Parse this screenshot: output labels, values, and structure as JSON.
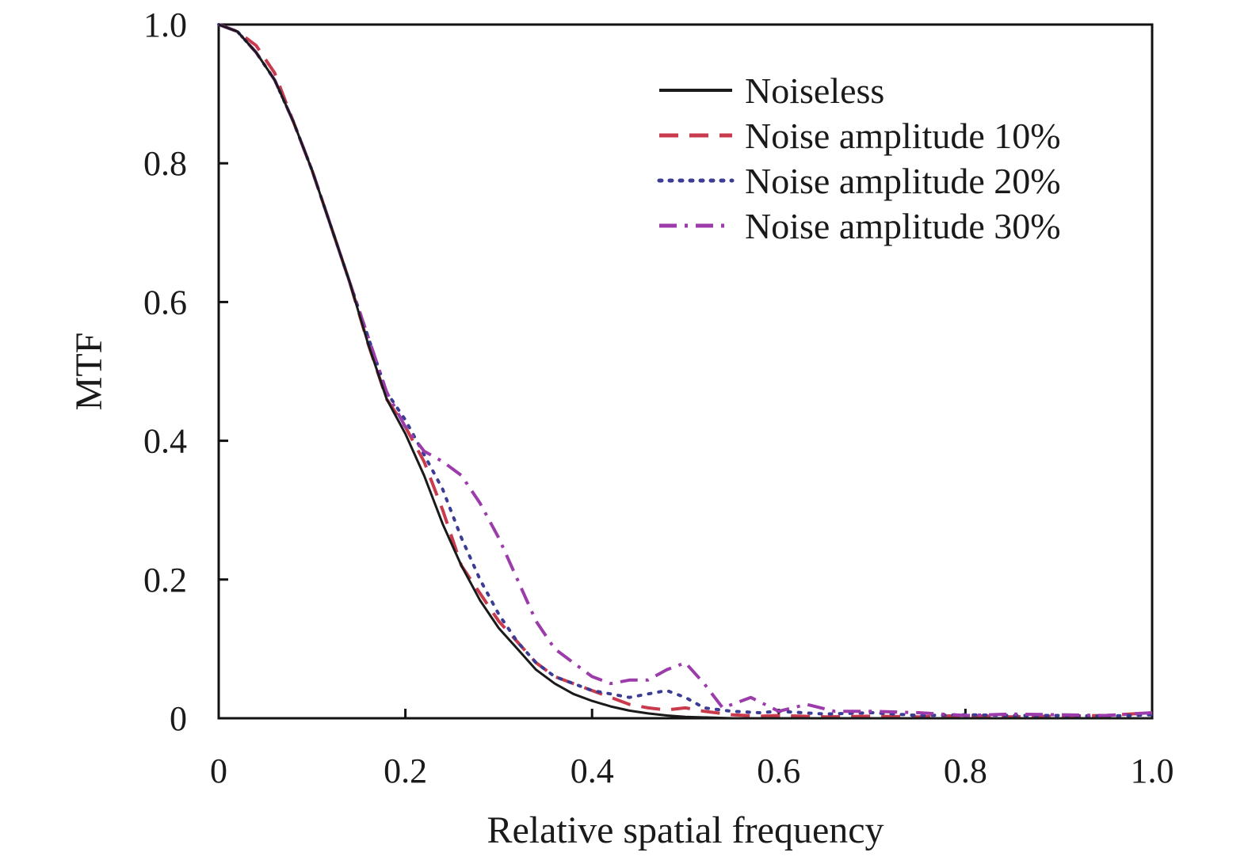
{
  "chart_data": {
    "type": "line",
    "title": "",
    "xlabel": "Relative spatial frequency",
    "ylabel": "MTF",
    "xlim": [
      0,
      1.0
    ],
    "ylim": [
      0,
      1.0
    ],
    "x_ticks": [
      "0",
      "0.2",
      "0.4",
      "0.6",
      "0.8",
      "1.0"
    ],
    "y_ticks": [
      "0",
      "0.2",
      "0.4",
      "0.6",
      "0.8",
      "1.0"
    ],
    "grid": false,
    "legend_position": "top-right",
    "series": [
      {
        "name": "Noiseless",
        "color": "#1a1a1a",
        "dash": "solid",
        "x": [
          0,
          0.02,
          0.04,
          0.06,
          0.08,
          0.1,
          0.12,
          0.14,
          0.16,
          0.18,
          0.2,
          0.22,
          0.24,
          0.26,
          0.28,
          0.3,
          0.32,
          0.34,
          0.36,
          0.38,
          0.4,
          0.42,
          0.44,
          0.46,
          0.48,
          0.5,
          0.55,
          0.6,
          0.7,
          0.8,
          0.9,
          1.0
        ],
        "y": [
          1.0,
          0.99,
          0.96,
          0.92,
          0.86,
          0.79,
          0.71,
          0.63,
          0.54,
          0.46,
          0.41,
          0.35,
          0.28,
          0.22,
          0.17,
          0.13,
          0.1,
          0.07,
          0.05,
          0.035,
          0.025,
          0.017,
          0.011,
          0.007,
          0.004,
          0.002,
          0.0,
          0.0,
          0.0,
          0.0,
          0.0,
          0.0
        ]
      },
      {
        "name": "Noise amplitude 10%",
        "color": "#c83a4c",
        "dash": "dashed",
        "x": [
          0,
          0.02,
          0.04,
          0.06,
          0.08,
          0.1,
          0.12,
          0.14,
          0.16,
          0.18,
          0.2,
          0.22,
          0.24,
          0.26,
          0.28,
          0.3,
          0.32,
          0.34,
          0.36,
          0.38,
          0.4,
          0.42,
          0.44,
          0.46,
          0.48,
          0.5,
          0.52,
          0.55,
          0.58,
          0.6,
          0.65,
          0.7,
          0.75,
          0.8,
          0.85,
          0.9,
          0.95,
          1.0
        ],
        "y": [
          1.0,
          0.99,
          0.97,
          0.93,
          0.86,
          0.79,
          0.71,
          0.63,
          0.54,
          0.46,
          0.42,
          0.37,
          0.3,
          0.22,
          0.18,
          0.14,
          0.11,
          0.08,
          0.06,
          0.05,
          0.04,
          0.03,
          0.02,
          0.015,
          0.012,
          0.015,
          0.01,
          0.005,
          0.003,
          0.004,
          0.002,
          0.003,
          0.002,
          0.004,
          0.002,
          0.003,
          0.004,
          0.008
        ]
      },
      {
        "name": "Noise amplitude 20%",
        "color": "#3c3c94",
        "dash": "dotted",
        "x": [
          0,
          0.02,
          0.04,
          0.06,
          0.08,
          0.1,
          0.12,
          0.14,
          0.16,
          0.18,
          0.2,
          0.22,
          0.24,
          0.26,
          0.28,
          0.3,
          0.32,
          0.34,
          0.36,
          0.38,
          0.4,
          0.42,
          0.44,
          0.46,
          0.48,
          0.5,
          0.52,
          0.55,
          0.58,
          0.6,
          0.65,
          0.7,
          0.75,
          0.8,
          0.85,
          0.9,
          0.95,
          1.0
        ],
        "y": [
          1.0,
          0.99,
          0.96,
          0.92,
          0.86,
          0.79,
          0.71,
          0.63,
          0.55,
          0.47,
          0.43,
          0.38,
          0.33,
          0.26,
          0.2,
          0.15,
          0.11,
          0.08,
          0.06,
          0.05,
          0.04,
          0.035,
          0.03,
          0.035,
          0.04,
          0.03,
          0.015,
          0.01,
          0.008,
          0.01,
          0.006,
          0.008,
          0.004,
          0.005,
          0.004,
          0.004,
          0.003,
          0.005
        ]
      },
      {
        "name": "Noise amplitude 30%",
        "color": "#9c3caa",
        "dash": "dash-dot",
        "x": [
          0,
          0.02,
          0.04,
          0.06,
          0.08,
          0.1,
          0.12,
          0.14,
          0.16,
          0.18,
          0.2,
          0.22,
          0.24,
          0.26,
          0.28,
          0.3,
          0.32,
          0.34,
          0.36,
          0.38,
          0.4,
          0.42,
          0.44,
          0.46,
          0.48,
          0.5,
          0.52,
          0.54,
          0.57,
          0.6,
          0.63,
          0.66,
          0.7,
          0.75,
          0.8,
          0.85,
          0.9,
          0.95,
          1.0
        ],
        "y": [
          1.0,
          0.99,
          0.96,
          0.92,
          0.86,
          0.79,
          0.71,
          0.63,
          0.55,
          0.47,
          0.42,
          0.385,
          0.37,
          0.35,
          0.31,
          0.26,
          0.2,
          0.14,
          0.1,
          0.08,
          0.06,
          0.05,
          0.055,
          0.055,
          0.07,
          0.08,
          0.05,
          0.015,
          0.03,
          0.01,
          0.02,
          0.01,
          0.01,
          0.008,
          0.004,
          0.006,
          0.005,
          0.004,
          0.008
        ]
      }
    ]
  }
}
